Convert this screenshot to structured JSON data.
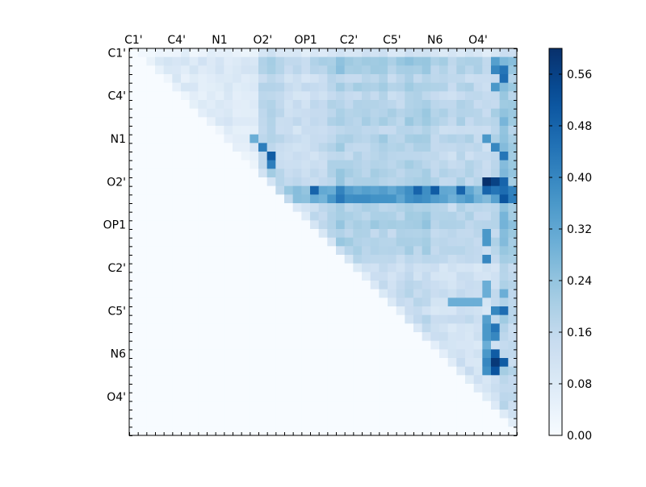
{
  "chart_data": {
    "type": "heatmap",
    "title": "",
    "xlabel": "",
    "ylabel": "",
    "x_tick_labels": [
      "C1'",
      "C4'",
      "N1",
      "O2'",
      "OP1",
      "C2'",
      "C5'",
      "N6",
      "O4'"
    ],
    "y_tick_labels": [
      "C1'",
      "C4'",
      "N1",
      "O2'",
      "OP1",
      "C2'",
      "C5'",
      "N6",
      "O4'"
    ],
    "n": 45,
    "layout": "upper-triangle",
    "colormap": "Blues",
    "vmin": 0.0,
    "vmax": 0.6,
    "colorbar_ticks": [
      "0.00",
      "0.08",
      "0.16",
      "0.24",
      "0.32",
      "0.40",
      "0.48",
      "0.56"
    ],
    "colorbar_tick_values": [
      0.0,
      0.08,
      0.16,
      0.24,
      0.32,
      0.4,
      0.48,
      0.56
    ],
    "row_base": [
      0.04,
      0.18,
      0.16,
      0.1,
      0.14,
      0.1,
      0.12,
      0.14,
      0.14,
      0.1,
      0.14,
      0.12,
      0.1,
      0.12,
      0.14,
      0.14,
      0.44,
      0.5,
      0.12,
      0.14,
      0.16,
      0.12,
      0.14,
      0.12,
      0.1,
      0.06,
      0.06,
      0.08,
      0.08,
      0.08,
      0.06,
      0.1,
      0.06,
      0.06,
      0.06,
      0.06,
      0.06,
      0.08,
      0.06,
      0.06,
      0.06,
      0.06,
      0.04,
      0.02,
      0.0
    ],
    "col_base": [
      0.0,
      0.04,
      0.04,
      0.04,
      0.04,
      0.06,
      0.04,
      0.04,
      0.04,
      0.04,
      0.04,
      0.04,
      0.04,
      0.04,
      0.04,
      0.2,
      0.22,
      0.14,
      0.12,
      0.12,
      0.12,
      0.14,
      0.16,
      0.2,
      0.28,
      0.22,
      0.22,
      0.22,
      0.22,
      0.24,
      0.2,
      0.2,
      0.26,
      0.24,
      0.26,
      0.18,
      0.18,
      0.16,
      0.2,
      0.18,
      0.16,
      0.14,
      0.2,
      0.4,
      0.3
    ],
    "strong_cells": [
      [
        1,
        42,
        0.34
      ],
      [
        2,
        42,
        0.4
      ],
      [
        2,
        43,
        0.44
      ],
      [
        3,
        43,
        0.46
      ],
      [
        4,
        42,
        0.36
      ],
      [
        10,
        41,
        0.36
      ],
      [
        11,
        42,
        0.4
      ],
      [
        12,
        43,
        0.44
      ],
      [
        10,
        14,
        0.3
      ],
      [
        11,
        15,
        0.42
      ],
      [
        12,
        16,
        0.5
      ],
      [
        13,
        16,
        0.42
      ],
      [
        15,
        42,
        0.56
      ],
      [
        15,
        43,
        0.48
      ],
      [
        16,
        21,
        0.48
      ],
      [
        16,
        33,
        0.48
      ],
      [
        16,
        35,
        0.5
      ],
      [
        16,
        38,
        0.48
      ],
      [
        16,
        41,
        0.48
      ],
      [
        21,
        41,
        0.36
      ],
      [
        22,
        41,
        0.36
      ],
      [
        24,
        41,
        0.4
      ],
      [
        27,
        41,
        0.3
      ],
      [
        28,
        41,
        0.3
      ],
      [
        28,
        43,
        0.3
      ],
      [
        29,
        37,
        0.3
      ],
      [
        29,
        38,
        0.3
      ],
      [
        29,
        39,
        0.3
      ],
      [
        29,
        40,
        0.3
      ],
      [
        30,
        42,
        0.4
      ],
      [
        30,
        43,
        0.46
      ],
      [
        31,
        41,
        0.34
      ],
      [
        32,
        41,
        0.36
      ],
      [
        32,
        42,
        0.44
      ],
      [
        33,
        41,
        0.36
      ],
      [
        33,
        42,
        0.4
      ],
      [
        34,
        41,
        0.3
      ],
      [
        35,
        41,
        0.36
      ],
      [
        35,
        42,
        0.5
      ],
      [
        36,
        41,
        0.4
      ],
      [
        36,
        42,
        0.58
      ],
      [
        36,
        43,
        0.5
      ],
      [
        37,
        41,
        0.38
      ],
      [
        37,
        42,
        0.52
      ],
      [
        15,
        41,
        0.6
      ],
      [
        16,
        42,
        0.44
      ]
    ]
  }
}
